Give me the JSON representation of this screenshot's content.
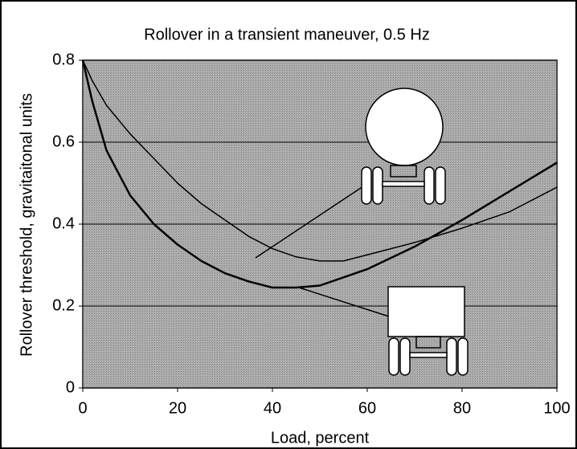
{
  "chart_data": {
    "type": "line",
    "title": "Rollover in a transient maneuver, 0.5 Hz",
    "x_label": "Load, percent",
    "y_label": "Rollover threshold, gravitaitonal units",
    "x": [
      0,
      2,
      5,
      10,
      15,
      20,
      25,
      30,
      35,
      40,
      45,
      50,
      55,
      60,
      70,
      80,
      90,
      100
    ],
    "series": [
      {
        "color": "#000000",
        "values": [
          0.8,
          0.75,
          0.69,
          0.62,
          0.56,
          0.5,
          0.45,
          0.41,
          0.37,
          0.34,
          0.32,
          0.31,
          0.31,
          0.325,
          0.355,
          0.39,
          0.43,
          0.49
        ]
      },
      {
        "color": "#000000",
        "values": [
          0.8,
          0.7,
          0.58,
          0.47,
          0.4,
          0.35,
          0.31,
          0.28,
          0.26,
          0.245,
          0.245,
          0.25,
          0.27,
          0.29,
          0.345,
          0.41,
          0.48,
          0.55
        ]
      }
    ],
    "xlim": [
      0,
      100
    ],
    "xticks": [
      0,
      20,
      40,
      60,
      80,
      100
    ],
    "ylim": [
      0,
      0.8
    ],
    "yticks": [
      0,
      0.2,
      0.4,
      0.6,
      0.8
    ],
    "grid": true,
    "plot_background": "#a9a9a9"
  }
}
